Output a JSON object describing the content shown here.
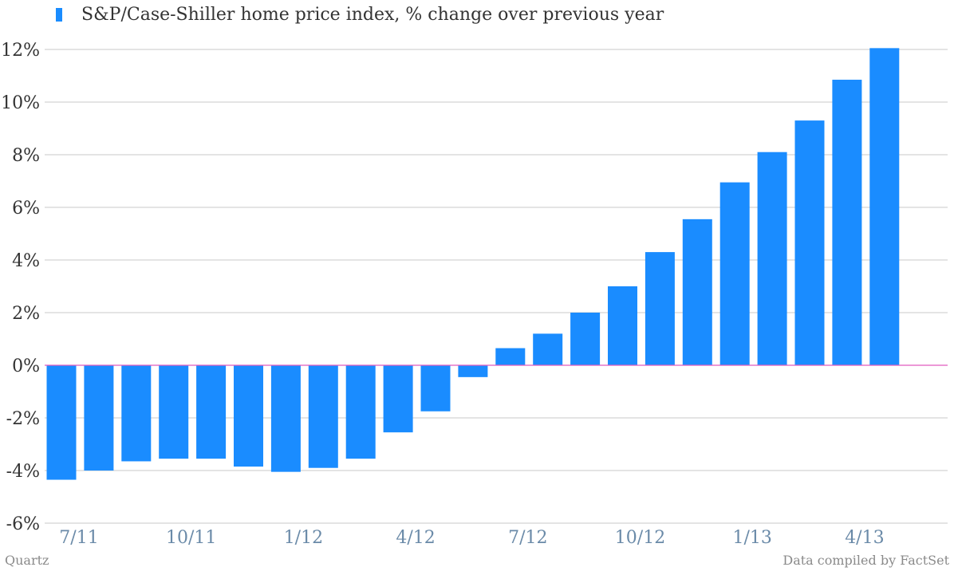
{
  "chart_data": {
    "type": "bar",
    "categories": [
      "7/11",
      "8/11",
      "9/11",
      "10/11",
      "11/11",
      "12/11",
      "1/12",
      "2/12",
      "3/12",
      "4/12",
      "5/12",
      "6/12",
      "7/12",
      "8/12",
      "9/12",
      "10/12",
      "11/12",
      "12/12",
      "1/13",
      "2/13",
      "3/13",
      "4/13",
      "5/13"
    ],
    "tick_labels": [
      "7/11",
      "10/11",
      "1/12",
      "4/12",
      "7/12",
      "10/12",
      "1/13",
      "4/13"
    ],
    "series": [
      {
        "name": "S&P/Case-Shiller home price index, % change over previous year",
        "values": [
          -4.35,
          -4.0,
          -3.65,
          -3.55,
          -3.55,
          -3.85,
          -4.05,
          -3.9,
          -3.55,
          -2.55,
          -1.75,
          -0.45,
          0.65,
          1.2,
          2.0,
          3.0,
          4.3,
          5.55,
          6.95,
          8.1,
          9.3,
          10.85,
          12.05
        ]
      }
    ],
    "y_ticks": [
      "12%",
      "10%",
      "8%",
      "6%",
      "4%",
      "2%",
      "0%",
      "-2%",
      "-4%",
      "-6%"
    ],
    "ylim": [
      -6,
      12
    ],
    "grid": true,
    "legend": "top-left",
    "colors": {
      "bar": "#1a8cff",
      "zero_line": "#e05bbf",
      "grid": "#c8c8c8",
      "ytick": "#333333",
      "xtick": "#6a8aa8"
    }
  },
  "footer": {
    "source_left": "Quartz",
    "source_right": "Data compiled by FactSet"
  }
}
